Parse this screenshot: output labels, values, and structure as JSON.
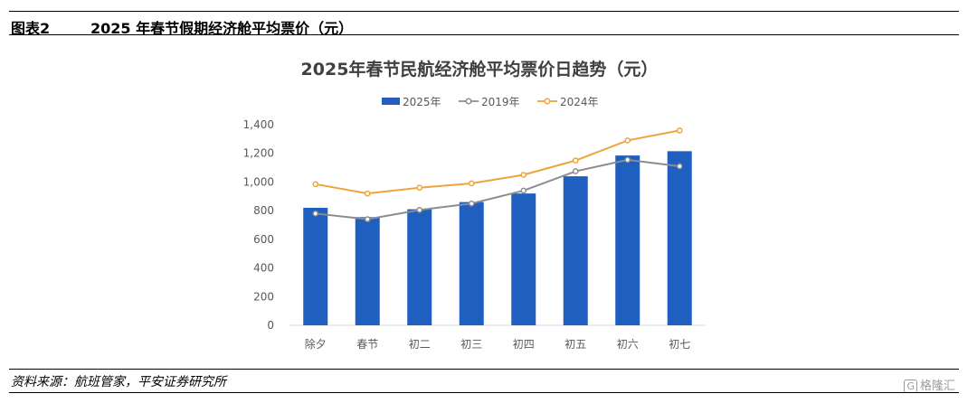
{
  "figure": {
    "label": "图表2",
    "title": "2025 年春节假期经济舱平均票价（元）"
  },
  "source": "资料来源：航班管家，平安证券研究所",
  "watermark": {
    "glyph": "G",
    "text": "格隆汇"
  },
  "chart_data": {
    "type": "bar",
    "title": "2025年春节民航经济舱平均票价日趋势（元）",
    "categories": [
      "除夕",
      "春节",
      "初二",
      "初三",
      "初四",
      "初五",
      "初六",
      "初七"
    ],
    "series": [
      {
        "name": "2025年",
        "type": "bar",
        "color": "#1f5fbf",
        "values": [
          820,
          755,
          810,
          860,
          920,
          1040,
          1185,
          1215
        ]
      },
      {
        "name": "2019年",
        "type": "line",
        "color": "#8c8c8c",
        "values": [
          780,
          740,
          805,
          850,
          940,
          1075,
          1155,
          1110
        ]
      },
      {
        "name": "2024年",
        "type": "line",
        "color": "#f0a33a",
        "values": [
          985,
          920,
          960,
          990,
          1050,
          1150,
          1290,
          1360
        ]
      }
    ],
    "ylim": [
      0,
      1400
    ],
    "yticks": [
      0,
      200,
      400,
      600,
      800,
      1000,
      1200,
      1400
    ],
    "ytick_labels": [
      "0",
      "200",
      "400",
      "600",
      "800",
      "1,000",
      "1,200",
      "1,400"
    ],
    "grid": false,
    "legend_position": "top"
  }
}
